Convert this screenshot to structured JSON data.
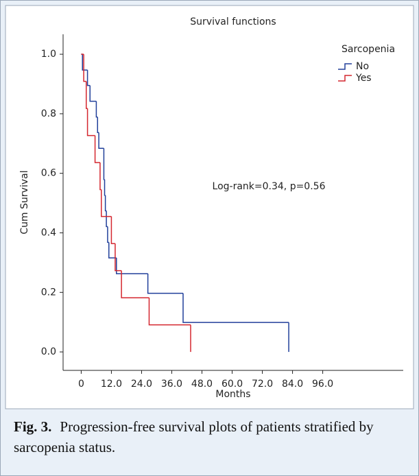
{
  "chart_data": {
    "type": "step",
    "title": "Survival functions",
    "x_label": "Months",
    "y_label": "Cum Survival",
    "annotation": "Log-rank=0.34, p=0.56",
    "legend_title": "Sarcopenia",
    "legend": "upper right",
    "series": [
      {
        "name": "No",
        "color": "#203f9a",
        "x": [
          0,
          0.5,
          2.5,
          3.5,
          6,
          6.5,
          7,
          9,
          9.3,
          9.6,
          10,
          10.5,
          11,
          14,
          26.5,
          40.5,
          82.5
        ],
        "values": [
          1.0,
          0.947,
          0.895,
          0.842,
          0.789,
          0.737,
          0.684,
          0.579,
          0.526,
          0.474,
          0.421,
          0.368,
          0.316,
          0.263,
          0.197,
          0.099,
          0.0
        ]
      },
      {
        "name": "Yes",
        "color": "#d4262e",
        "x": [
          0,
          1,
          2,
          2.5,
          5.5,
          7.5,
          8,
          12,
          13.5,
          16,
          27,
          43.5
        ],
        "values": [
          1.0,
          0.909,
          0.818,
          0.727,
          0.636,
          0.545,
          0.455,
          0.364,
          0.273,
          0.182,
          0.091,
          0.0
        ]
      }
    ],
    "xlim": [
      -7.2,
      128
    ],
    "ylim": [
      -0.062,
      1.067
    ],
    "xticks": [
      0,
      {
        "value": 12,
        "label": "12.0"
      },
      {
        "value": 24,
        "label": "24.0"
      },
      {
        "value": 36,
        "label": "36.0"
      },
      {
        "value": 48,
        "label": "48.0"
      },
      {
        "value": 60,
        "label": "60.0"
      },
      {
        "value": 72,
        "label": "72.0"
      },
      {
        "value": 84,
        "label": "84.0"
      },
      {
        "value": 96,
        "label": "96.0"
      }
    ],
    "yticks": [
      {
        "value": 0,
        "label": "0.0"
      },
      {
        "value": 0.2,
        "label": "0.2"
      },
      {
        "value": 0.4,
        "label": "0.4"
      },
      {
        "value": 0.6,
        "label": "0.6"
      },
      {
        "value": 0.8,
        "label": "0.8"
      },
      {
        "value": 1.0,
        "label": "1.0"
      }
    ],
    "grid": false
  },
  "caption": {
    "label": "Fig. 3.",
    "text": "Progression-free survival plots of patients stratified by sarcopenia status."
  }
}
